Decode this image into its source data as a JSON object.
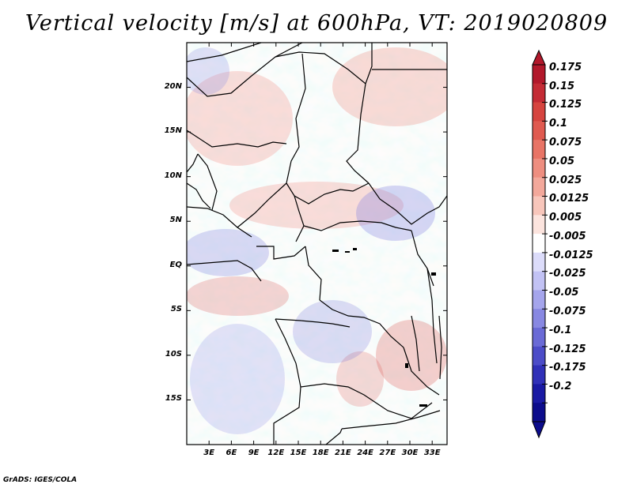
{
  "title": "Vertical velocity [m/s] at 600hPa, VT: 2019020809",
  "credit": "GrADS: IGES/COLA",
  "map": {
    "lat_labels": [
      "20N",
      "15N",
      "10N",
      "5N",
      "EQ",
      "5S",
      "10S",
      "15S"
    ],
    "lat_values": [
      20,
      15,
      10,
      5,
      0,
      -5,
      -10,
      -15
    ],
    "lon_labels": [
      "3E",
      "6E",
      "9E",
      "12E",
      "15E",
      "18E",
      "21E",
      "24E",
      "27E",
      "30E",
      "33E"
    ],
    "lon_values": [
      3,
      6,
      9,
      12,
      15,
      18,
      21,
      24,
      27,
      30,
      33
    ],
    "lon_range": [
      0,
      35
    ],
    "lat_range": [
      -20,
      25
    ]
  },
  "colorbar": {
    "labels": [
      "0.175",
      "0.15",
      "0.125",
      "0.1",
      "0.075",
      "0.05",
      "0.025",
      "0.0125",
      "0.005",
      "-0.005",
      "-0.0125",
      "-0.025",
      "-0.05",
      "-0.075",
      "-0.1",
      "-0.125",
      "-0.175",
      "-0.2"
    ],
    "colors": [
      "#b2182b",
      "#c42b35",
      "#d6443f",
      "#e05a50",
      "#e87466",
      "#ee8e80",
      "#f3a89b",
      "#f8c6bb",
      "#fce4de",
      "#ffffff",
      "#dcdcfa",
      "#c2c2f4",
      "#a5a5ec",
      "#8888e2",
      "#6a6ad6",
      "#4c4cc8",
      "#3030b8",
      "#1a1aa4",
      "#0c0c8c"
    ]
  }
}
